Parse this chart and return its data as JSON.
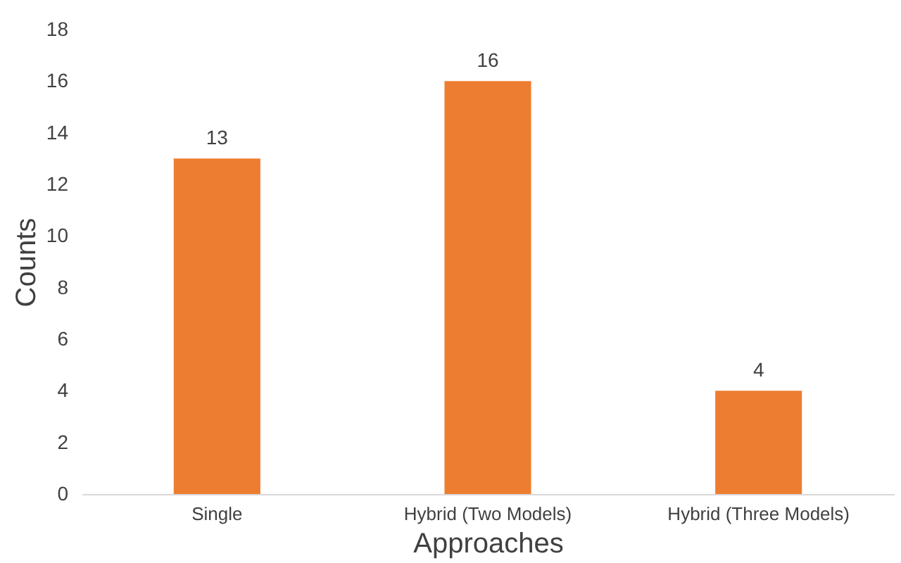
{
  "chart_data": {
    "type": "bar",
    "xlabel": "Approaches",
    "ylabel": "Counts",
    "categories": [
      "Single",
      "Hybrid (Two Models)",
      "Hybrid (Three Models)"
    ],
    "values": [
      13,
      16,
      4
    ],
    "color": "#ed7d31",
    "ylim": [
      0,
      18
    ],
    "yticks": [
      0,
      2,
      4,
      6,
      8,
      10,
      12,
      14,
      16,
      18
    ],
    "grid": false,
    "data_labels": true
  }
}
